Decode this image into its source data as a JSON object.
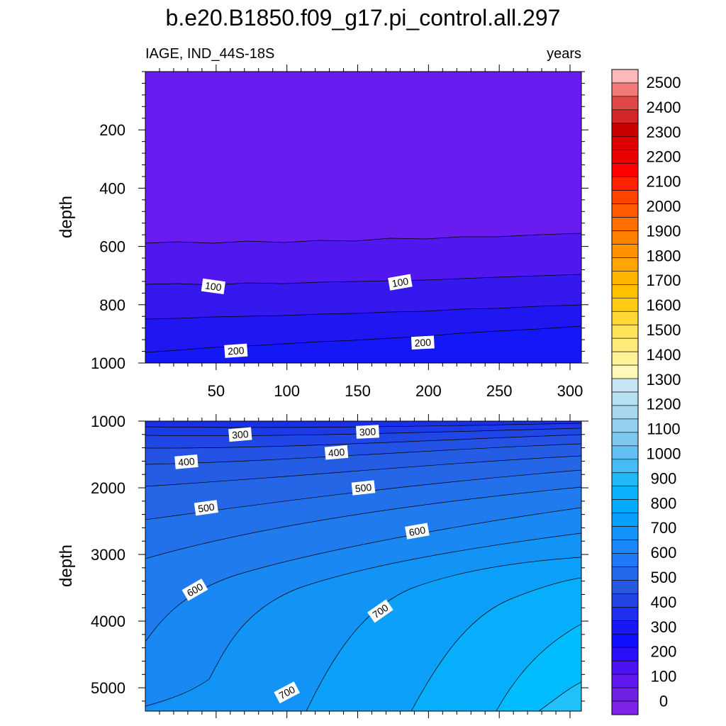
{
  "figure": {
    "title": "b.e20.B1850.f09_g17.pi_control.all.297"
  },
  "chart_data": [
    {
      "type": "contour",
      "panel": "upper",
      "left_label": "IAGE, IND_44S-18S",
      "right_label": "years",
      "xlabel": "",
      "ylabel": "depth",
      "xlim": [
        0,
        308
      ],
      "ylim": [
        0,
        1000
      ],
      "y_reversed": true,
      "xticks": [
        50,
        100,
        150,
        200,
        250,
        300
      ],
      "yticks": [
        200,
        400,
        600,
        800,
        1000
      ],
      "contour_values": [
        50,
        100,
        150,
        200
      ],
      "contour_labels": [
        {
          "text": "100",
          "x": 48,
          "depth": 737,
          "angle": 8
        },
        {
          "text": "100",
          "x": 180,
          "depth": 723,
          "angle": -10
        },
        {
          "text": "200",
          "x": 64,
          "depth": 958,
          "angle": -4
        },
        {
          "text": "200",
          "x": 196,
          "depth": 930,
          "angle": -3
        }
      ],
      "contour_depths": [
        {
          "level": 50,
          "x": [
            0,
            100,
            200,
            308
          ],
          "depth": [
            588,
            582,
            575,
            567
          ]
        },
        {
          "level": 100,
          "x": [
            0,
            100,
            200,
            308
          ],
          "depth": [
            730,
            728,
            718,
            700
          ]
        },
        {
          "level": 150,
          "x": [
            0,
            100,
            200,
            308
          ],
          "depth": [
            848,
            840,
            827,
            808
          ]
        },
        {
          "level": 200,
          "x": [
            0,
            100,
            200,
            308
          ],
          "depth": [
            965,
            950,
            930,
            905
          ]
        }
      ]
    },
    {
      "type": "contour",
      "panel": "lower",
      "xlabel": "",
      "ylabel": "depth",
      "xlim": [
        0,
        308
      ],
      "ylim": [
        1000,
        5350
      ],
      "y_reversed": true,
      "yticks": [
        1000,
        2000,
        3000,
        4000,
        5000
      ],
      "contour_values": [
        250,
        300,
        350,
        400,
        450,
        500,
        550,
        600,
        650,
        700,
        750,
        800
      ],
      "contour_labels": [
        {
          "text": "300",
          "x": 67,
          "depth": 1200,
          "angle": -5
        },
        {
          "text": "300",
          "x": 157,
          "depth": 1160,
          "angle": -3
        },
        {
          "text": "400",
          "x": 29,
          "depth": 1610,
          "angle": -5
        },
        {
          "text": "400",
          "x": 135,
          "depth": 1470,
          "angle": -5
        },
        {
          "text": "500",
          "x": 43,
          "depth": 2300,
          "angle": -8
        },
        {
          "text": "500",
          "x": 154,
          "depth": 2000,
          "angle": -6
        },
        {
          "text": "600",
          "x": 35,
          "depth": 3530,
          "angle": -30
        },
        {
          "text": "600",
          "x": 192,
          "depth": 2650,
          "angle": -10
        },
        {
          "text": "700",
          "x": 100,
          "depth": 5070,
          "angle": -28
        },
        {
          "text": "700",
          "x": 166,
          "depth": 3850,
          "angle": -35
        }
      ]
    }
  ],
  "colorbar": {
    "labels": [
      "2500",
      "2400",
      "2300",
      "2200",
      "2100",
      "2000",
      "1900",
      "1800",
      "1700",
      "1600",
      "1500",
      "1400",
      "1300",
      "1200",
      "1100",
      "1000",
      "900",
      "800",
      "700",
      "600",
      "500",
      "400",
      "300",
      "200",
      "100",
      "0"
    ],
    "colors_top_to_bottom": [
      "#ffb8b8",
      "#f07a7a",
      "#e04848",
      "#d42626",
      "#c80000",
      "#dc0000",
      "#ea0000",
      "#ff0000",
      "#ff2200",
      "#ff4400",
      "#ff5a00",
      "#ff6e00",
      "#ff8000",
      "#ff9200",
      "#ffa400",
      "#ffb400",
      "#ffc000",
      "#ffcc14",
      "#ffd836",
      "#ffe45a",
      "#ffec78",
      "#fff294",
      "#fff8b6",
      "#c6e6f6",
      "#b6e0f4",
      "#a6d8f0",
      "#94d0ee",
      "#7ec8ee",
      "#62c0f2",
      "#46bcf6",
      "#22b8f8",
      "#0ab2fc",
      "#00aaff",
      "#089ffe",
      "#1294fd",
      "#1a88fc",
      "#2078fa",
      "#2468ec",
      "#2858e0",
      "#2444e2",
      "#1e30ee",
      "#1818f4",
      "#1010fc",
      "#2a10f8",
      "#4a12f0",
      "#6018ec",
      "#7020e4",
      "#8022e8"
    ]
  }
}
